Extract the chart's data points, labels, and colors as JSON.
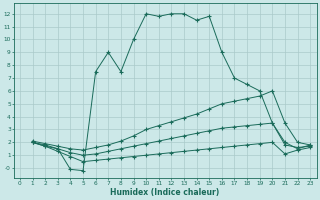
{
  "xlabel": "Humidex (Indice chaleur)",
  "background_color": "#cce8e8",
  "line_color": "#1a6b5a",
  "grid_color": "#aacaca",
  "xlim": [
    -0.5,
    23.5
  ],
  "ylim": [
    -0.8,
    12.8
  ],
  "xticks": [
    0,
    1,
    2,
    3,
    4,
    5,
    6,
    7,
    8,
    9,
    10,
    11,
    12,
    13,
    14,
    15,
    16,
    17,
    18,
    19,
    20,
    21,
    22,
    23
  ],
  "yticks": [
    0,
    1,
    2,
    3,
    4,
    5,
    6,
    7,
    8,
    9,
    10,
    11,
    12
  ],
  "ytick_labels": [
    "-0",
    "1",
    "2",
    "3",
    "4",
    "5",
    "6",
    "7",
    "8",
    "9",
    "10",
    "11",
    "12"
  ],
  "line1_x": [
    1,
    2,
    3,
    4,
    5,
    6,
    7,
    8,
    9,
    10,
    11,
    12,
    13,
    14,
    15,
    16,
    17,
    18,
    19,
    20,
    21,
    22,
    23
  ],
  "line1_y": [
    2.0,
    1.7,
    1.5,
    -0.1,
    -0.2,
    7.5,
    9.0,
    7.5,
    10.0,
    12.0,
    11.8,
    12.0,
    12.0,
    11.5,
    11.8,
    9.0,
    7.0,
    6.5,
    6.0,
    3.5,
    2.0,
    1.5,
    1.8
  ],
  "line2_x": [
    1,
    2,
    3,
    4,
    5,
    6,
    7,
    8,
    9,
    10,
    11,
    12,
    13,
    14,
    15,
    16,
    17,
    18,
    19,
    20,
    21,
    22,
    23
  ],
  "line2_y": [
    2.1,
    1.9,
    1.7,
    1.5,
    1.4,
    1.6,
    1.8,
    2.1,
    2.5,
    3.0,
    3.3,
    3.6,
    3.9,
    4.2,
    4.6,
    5.0,
    5.2,
    5.4,
    5.6,
    6.0,
    3.5,
    2.0,
    1.8
  ],
  "line3_x": [
    1,
    2,
    3,
    4,
    5,
    6,
    7,
    8,
    9,
    10,
    11,
    12,
    13,
    14,
    15,
    16,
    17,
    18,
    19,
    20,
    21,
    22,
    23
  ],
  "line3_y": [
    2.0,
    1.8,
    1.5,
    1.2,
    1.0,
    1.1,
    1.3,
    1.5,
    1.7,
    1.9,
    2.1,
    2.3,
    2.5,
    2.7,
    2.9,
    3.1,
    3.2,
    3.3,
    3.4,
    3.5,
    1.8,
    1.6,
    1.7
  ],
  "line4_x": [
    1,
    2,
    3,
    4,
    5,
    6,
    7,
    8,
    9,
    10,
    11,
    12,
    13,
    14,
    15,
    16,
    17,
    18,
    19,
    20,
    21,
    22,
    23
  ],
  "line4_y": [
    2.0,
    1.7,
    1.3,
    0.9,
    0.5,
    0.6,
    0.7,
    0.8,
    0.9,
    1.0,
    1.1,
    1.2,
    1.3,
    1.4,
    1.5,
    1.6,
    1.7,
    1.8,
    1.9,
    2.0,
    1.1,
    1.4,
    1.6
  ]
}
